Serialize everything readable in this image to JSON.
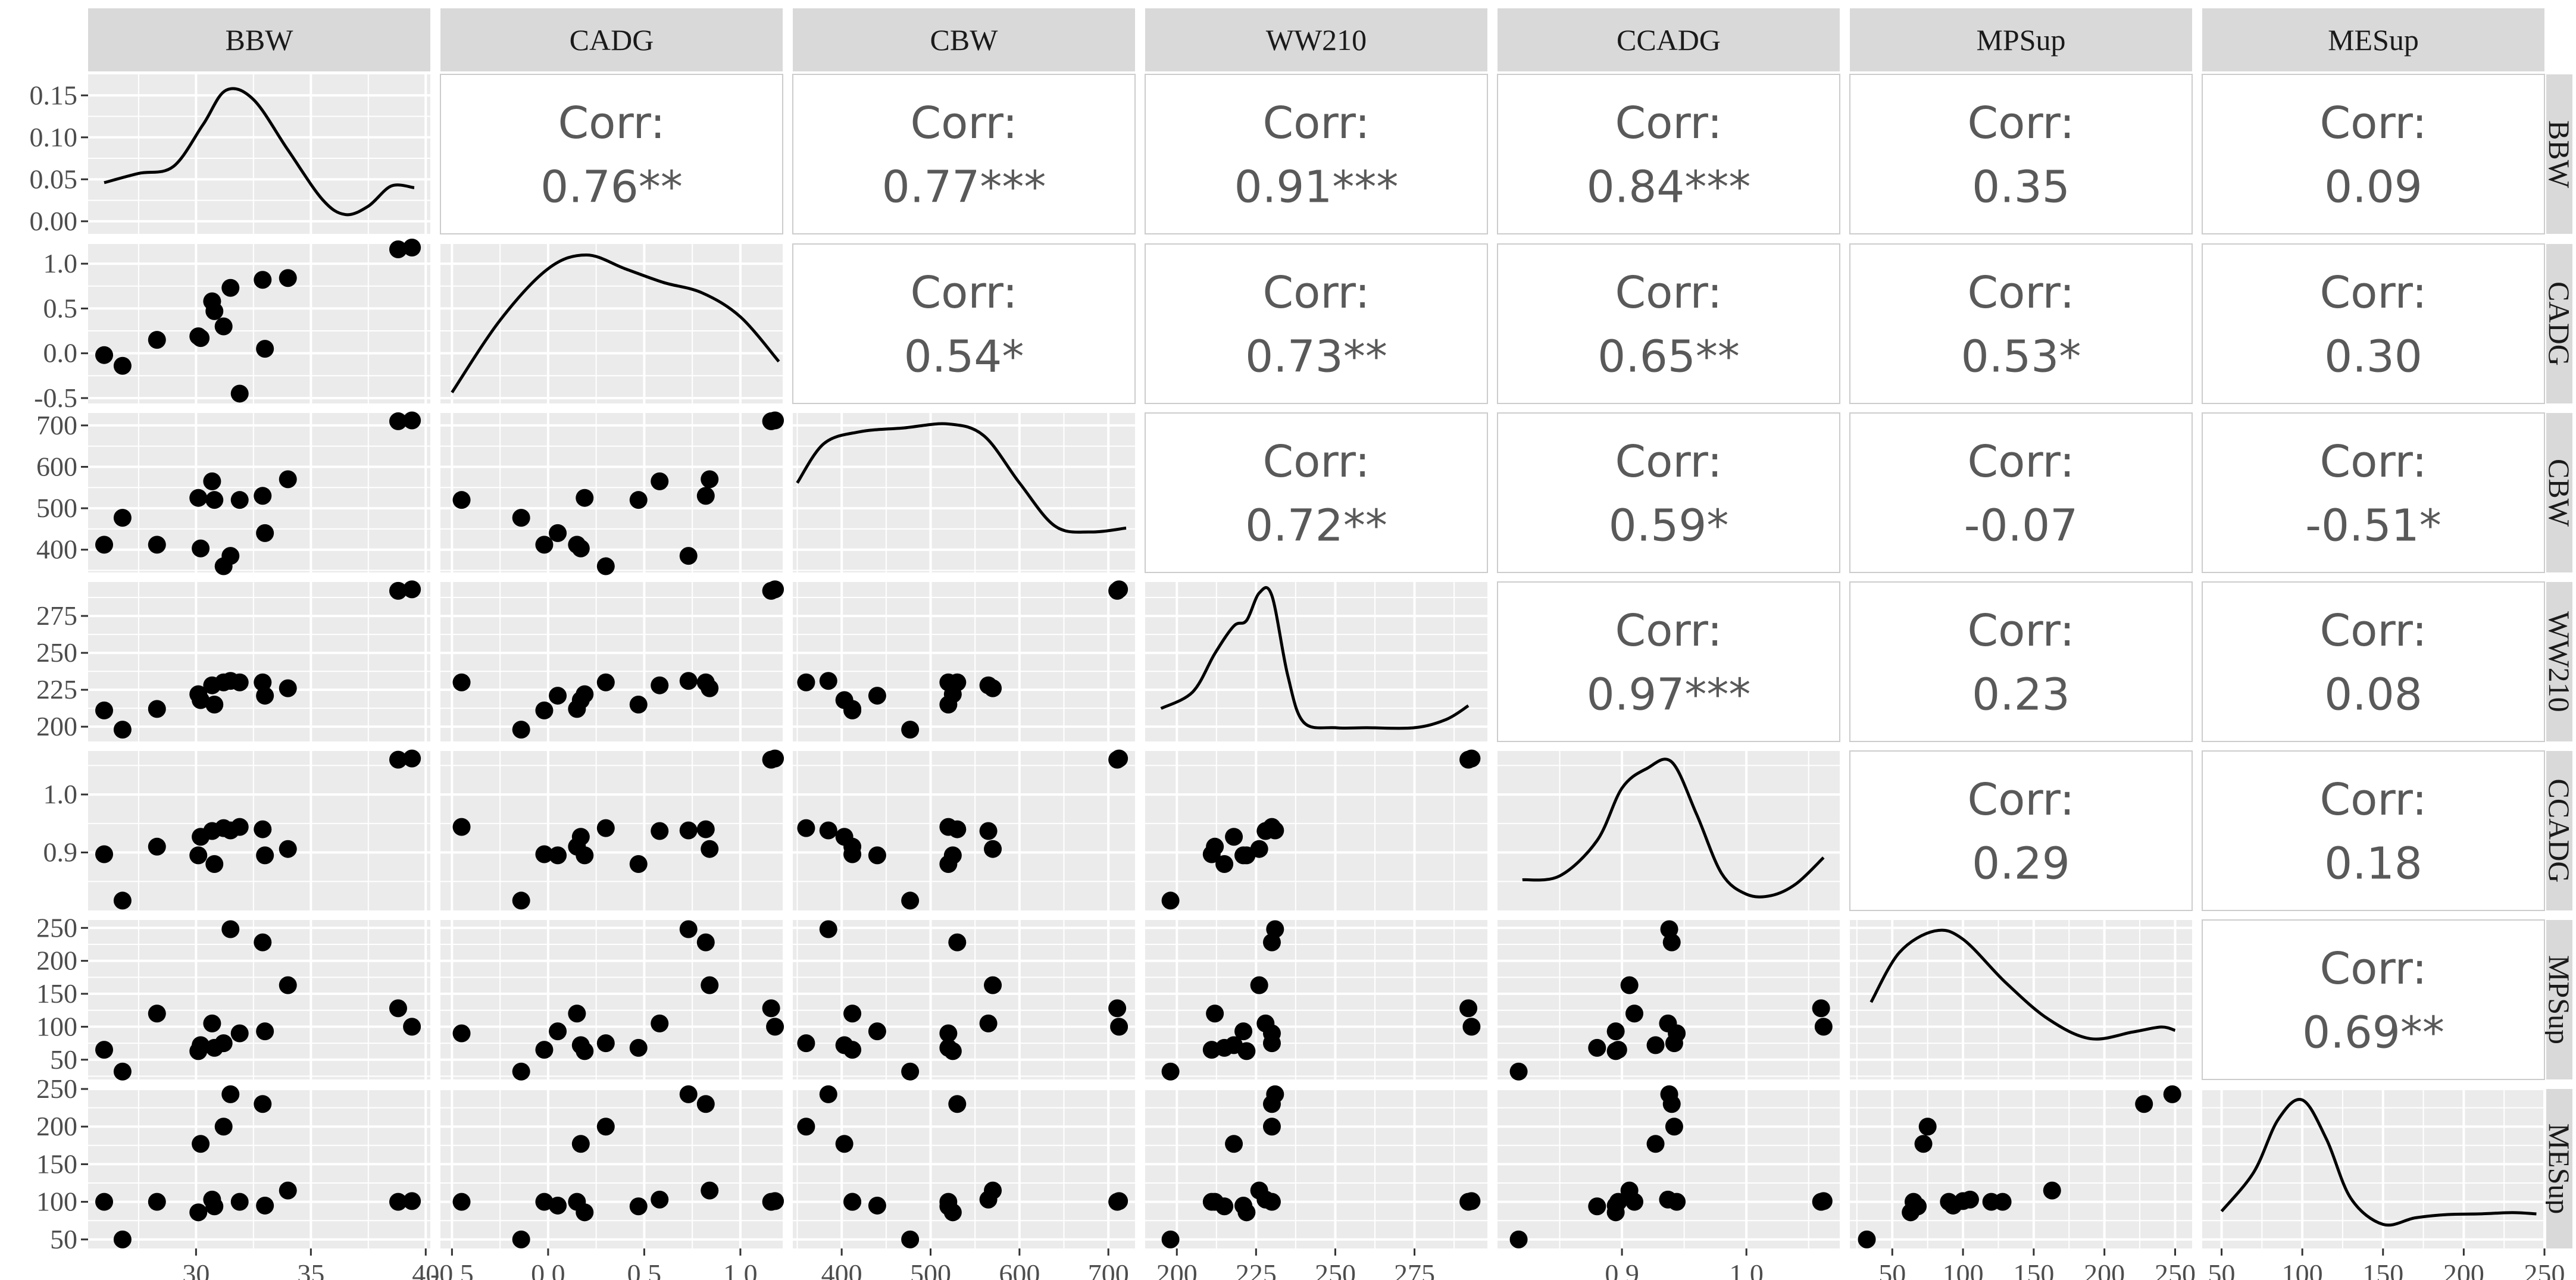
{
  "chart_data": {
    "type": "scatter",
    "variables": [
      "BBW",
      "CADG",
      "CBW",
      "WW210",
      "CCADG",
      "MPSup",
      "MESup"
    ],
    "corr_label": "Corr:",
    "correlations": [
      {
        "row": "BBW",
        "col": "CADG",
        "text": "0.76**"
      },
      {
        "row": "BBW",
        "col": "CBW",
        "text": "0.77***"
      },
      {
        "row": "BBW",
        "col": "WW210",
        "text": "0.91***"
      },
      {
        "row": "BBW",
        "col": "CCADG",
        "text": "0.84***"
      },
      {
        "row": "BBW",
        "col": "MPSup",
        "text": "0.35"
      },
      {
        "row": "BBW",
        "col": "MESup",
        "text": "0.09"
      },
      {
        "row": "CADG",
        "col": "CBW",
        "text": "0.54*"
      },
      {
        "row": "CADG",
        "col": "WW210",
        "text": "0.73**"
      },
      {
        "row": "CADG",
        "col": "CCADG",
        "text": "0.65**"
      },
      {
        "row": "CADG",
        "col": "MPSup",
        "text": "0.53*"
      },
      {
        "row": "CADG",
        "col": "MESup",
        "text": "0.30"
      },
      {
        "row": "CBW",
        "col": "WW210",
        "text": "0.72**"
      },
      {
        "row": "CBW",
        "col": "CCADG",
        "text": "0.59*"
      },
      {
        "row": "CBW",
        "col": "MPSup",
        "text": "-0.07"
      },
      {
        "row": "CBW",
        "col": "MESup",
        "text": "-0.51*"
      },
      {
        "row": "WW210",
        "col": "CCADG",
        "text": "0.97***"
      },
      {
        "row": "WW210",
        "col": "MPSup",
        "text": "0.23"
      },
      {
        "row": "WW210",
        "col": "MESup",
        "text": "0.08"
      },
      {
        "row": "CCADG",
        "col": "MPSup",
        "text": "0.29"
      },
      {
        "row": "CCADG",
        "col": "MESup",
        "text": "0.18"
      },
      {
        "row": "MPSup",
        "col": "MESup",
        "text": "0.69**"
      }
    ],
    "axes": {
      "BBW": {
        "range": [
          25.3,
          40.2
        ],
        "ticks": [
          30,
          35,
          40
        ],
        "tick_labels": [
          "30",
          "35",
          "40"
        ]
      },
      "CADG": {
        "range": [
          -0.56,
          1.22
        ],
        "ticks": [
          -0.5,
          0.0,
          0.5,
          1.0
        ],
        "tick_labels": [
          "-0.5",
          "0.0",
          "0.5",
          "1.0"
        ]
      },
      "CBW": {
        "range": [
          345,
          730
        ],
        "ticks": [
          400,
          500,
          600,
          700
        ],
        "tick_labels": [
          "400",
          "500",
          "600",
          "700"
        ]
      },
      "WW210": {
        "range": [
          190,
          298
        ],
        "ticks": [
          200,
          225,
          250,
          275
        ],
        "tick_labels": [
          "200",
          "225",
          "250",
          "275"
        ]
      },
      "CCADG": {
        "range": [
          0.8,
          1.075
        ],
        "ticks": [
          0.9,
          1.0
        ],
        "tick_labels": [
          "0.9",
          "1.0"
        ]
      },
      "MPSup": {
        "range": [
          20,
          262
        ],
        "ticks": [
          50,
          100,
          150,
          200,
          250
        ],
        "tick_labels": [
          "50",
          "100",
          "150",
          "200",
          "250"
        ]
      },
      "MESup": {
        "range": [
          38,
          250
        ],
        "ticks": [
          50,
          100,
          150,
          200,
          250
        ],
        "tick_labels": [
          "50",
          "100",
          "150",
          "200",
          "250"
        ]
      }
    },
    "left_axis_ticks": [
      {
        "row": "BBW",
        "range": [
          -0.015,
          0.175
        ],
        "ticks": [
          0.0,
          0.05,
          0.1,
          0.15
        ],
        "tick_labels": [
          "0.00",
          "0.05",
          "0.10",
          "0.15"
        ]
      },
      {
        "row": "CADG",
        "range": [
          -0.56,
          1.22
        ],
        "ticks": [
          -0.5,
          0.0,
          0.5,
          1.0
        ],
        "tick_labels": [
          "-0.5",
          "0.0",
          "0.5",
          "1.0"
        ]
      },
      {
        "row": "CBW",
        "range": [
          345,
          730
        ],
        "ticks": [
          400,
          500,
          600,
          700
        ],
        "tick_labels": [
          "400",
          "500",
          "600",
          "700"
        ]
      },
      {
        "row": "WW210",
        "range": [
          190,
          298
        ],
        "ticks": [
          200,
          225,
          250,
          275
        ],
        "tick_labels": [
          "200",
          "225",
          "250",
          "275"
        ]
      },
      {
        "row": "CCADG",
        "range": [
          0.8,
          1.075
        ],
        "ticks": [
          0.9,
          1.0
        ],
        "tick_labels": [
          "0.9",
          "1.0"
        ]
      },
      {
        "row": "MPSup",
        "range": [
          20,
          262
        ],
        "ticks": [
          50,
          100,
          150,
          200,
          250
        ],
        "tick_labels": [
          "50",
          "100",
          "150",
          "200",
          "250"
        ]
      },
      {
        "row": "MESup",
        "range": [
          38,
          250
        ],
        "ticks": [
          50,
          100,
          150,
          200,
          250
        ],
        "tick_labels": [
          "50",
          "100",
          "150",
          "200",
          "250"
        ]
      }
    ],
    "observations": [
      {
        "BBW": 26.0,
        "CADG": -0.02,
        "CBW": 412,
        "WW210": 211,
        "CCADG": 0.897,
        "MPSup": 65,
        "MESup": 100
      },
      {
        "BBW": 26.8,
        "CADG": -0.14,
        "CBW": 477,
        "WW210": 198,
        "CCADG": 0.817,
        "MPSup": 32,
        "MESup": 50
      },
      {
        "BBW": 28.3,
        "CADG": 0.15,
        "CBW": 412,
        "WW210": 212,
        "CCADG": 0.91,
        "MPSup": 120,
        "MESup": 100
      },
      {
        "BBW": 30.1,
        "CADG": 0.19,
        "CBW": 525,
        "WW210": 222,
        "CCADG": 0.895,
        "MPSup": 63,
        "MESup": 86
      },
      {
        "BBW": 30.2,
        "CADG": 0.17,
        "CBW": 403,
        "WW210": 218,
        "CCADG": 0.927,
        "MPSup": 72,
        "MESup": 177
      },
      {
        "BBW": 30.7,
        "CADG": 0.58,
        "CBW": 565,
        "WW210": 228,
        "CCADG": 0.937,
        "MPSup": 105,
        "MESup": 103
      },
      {
        "BBW": 30.8,
        "CADG": 0.47,
        "CBW": 520,
        "WW210": 215,
        "CCADG": 0.88,
        "MPSup": 68,
        "MESup": 94
      },
      {
        "BBW": 31.2,
        "CADG": 0.3,
        "CBW": 360,
        "WW210": 230,
        "CCADG": 0.942,
        "MPSup": 75,
        "MESup": 200
      },
      {
        "BBW": 31.5,
        "CADG": 0.73,
        "CBW": 385,
        "WW210": 231,
        "CCADG": 0.938,
        "MPSup": 248,
        "MESup": 243
      },
      {
        "BBW": 31.9,
        "CADG": -0.45,
        "CBW": 520,
        "WW210": 230,
        "CCADG": 0.944,
        "MPSup": 90,
        "MESup": 100
      },
      {
        "BBW": 32.9,
        "CADG": 0.82,
        "CBW": 530,
        "WW210": 230,
        "CCADG": 0.94,
        "MPSup": 228,
        "MESup": 230
      },
      {
        "BBW": 33.0,
        "CADG": 0.05,
        "CBW": 440,
        "WW210": 221,
        "CCADG": 0.895,
        "MPSup": 93,
        "MESup": 95
      },
      {
        "BBW": 34.0,
        "CADG": 0.84,
        "CBW": 570,
        "WW210": 226,
        "CCADG": 0.906,
        "MPSup": 163,
        "MESup": 115
      },
      {
        "BBW": 38.8,
        "CADG": 1.16,
        "CBW": 710,
        "WW210": 292,
        "CCADG": 1.06,
        "MPSup": 128,
        "MESup": 100
      },
      {
        "BBW": 39.4,
        "CADG": 1.18,
        "CBW": 712,
        "WW210": 293,
        "CCADG": 1.062,
        "MPSup": 100,
        "MESup": 101
      }
    ],
    "densities": {
      "BBW": {
        "x": [
          26,
          27.5,
          29,
          30.3,
          31.3,
          32.5,
          34,
          35.5,
          36.5,
          37.5,
          38.5,
          39.5
        ],
        "y": [
          0.046,
          0.057,
          0.065,
          0.115,
          0.156,
          0.145,
          0.085,
          0.026,
          0.008,
          0.018,
          0.042,
          0.04
        ]
      },
      "CADG": {
        "x": [
          -0.5,
          -0.25,
          0.0,
          0.2,
          0.4,
          0.6,
          0.8,
          1.0,
          1.2
        ],
        "y": [
          0.0,
          0.42,
          0.72,
          0.8,
          0.72,
          0.64,
          0.58,
          0.44,
          0.18
        ]
      },
      "CBW": {
        "x": [
          350,
          380,
          420,
          470,
          520,
          560,
          600,
          640,
          680,
          720
        ],
        "y": [
          0.002,
          0.003,
          0.0033,
          0.0034,
          0.0035,
          0.0032,
          0.002,
          0.0009,
          0.00075,
          0.00085
        ]
      },
      "WW210": {
        "x": [
          195,
          205,
          212,
          218,
          222,
          226,
          230,
          235,
          240,
          250,
          260,
          275,
          285,
          292
        ],
        "y": [
          0.008,
          0.014,
          0.028,
          0.038,
          0.04,
          0.05,
          0.049,
          0.02,
          0.003,
          0.001,
          0.001,
          0.001,
          0.004,
          0.009
        ]
      },
      "CCADG": {
        "x": [
          0.82,
          0.85,
          0.88,
          0.9,
          0.92,
          0.94,
          0.96,
          0.98,
          1.0,
          1.02,
          1.04,
          1.062
        ],
        "y": [
          1.5,
          1.8,
          4.5,
          8.5,
          10.0,
          10.5,
          6.5,
          2.0,
          0.4,
          0.3,
          1.2,
          3.2
        ]
      },
      "MPSup": {
        "x": [
          35,
          55,
          80,
          100,
          130,
          160,
          190,
          220,
          240,
          250
        ],
        "y": [
          0.004,
          0.007,
          0.0083,
          0.0078,
          0.0052,
          0.003,
          0.0018,
          0.0022,
          0.0025,
          0.0023
        ]
      },
      "MESup": {
        "x": [
          50,
          70,
          85,
          100,
          115,
          130,
          150,
          170,
          190,
          210,
          230,
          245
        ],
        "y": [
          0.004,
          0.01,
          0.018,
          0.021,
          0.015,
          0.006,
          0.002,
          0.003,
          0.0035,
          0.0036,
          0.0038,
          0.0036
        ]
      }
    },
    "colors": {
      "panel_bg": "#ebebeb",
      "grid": "#ffffff",
      "strip_bg": "#d9d9d9",
      "points": "#000000",
      "text": "#595959"
    }
  }
}
